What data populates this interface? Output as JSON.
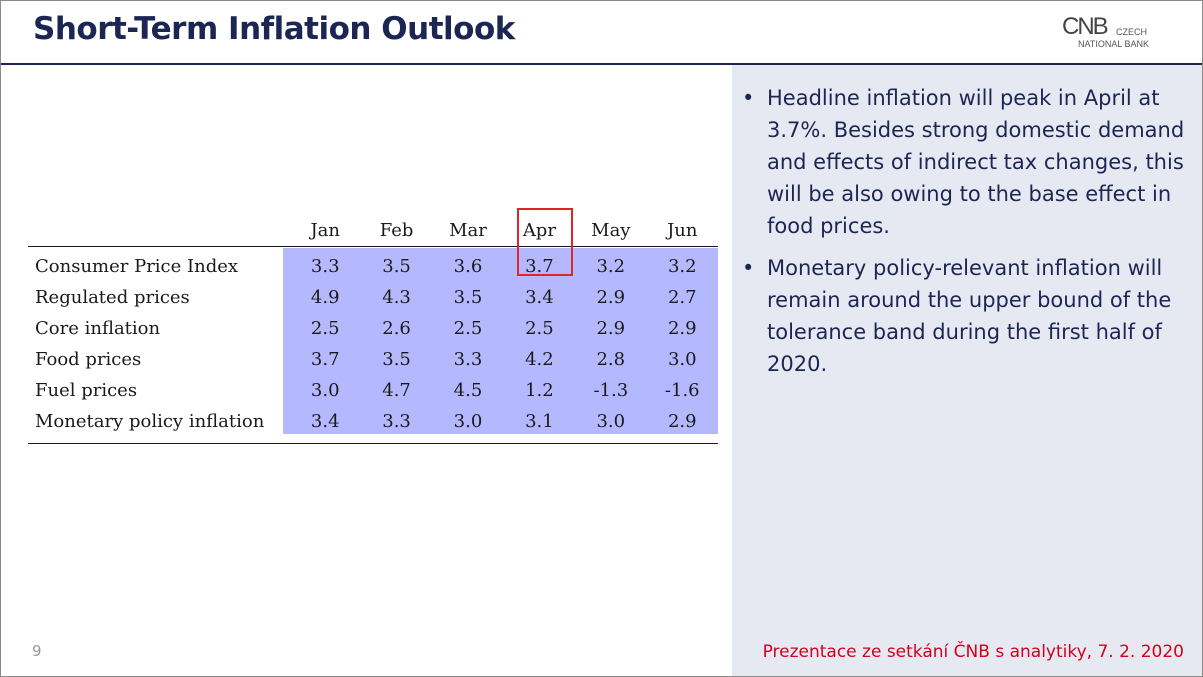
{
  "header": {
    "title": "Short-Term Inflation Outlook",
    "logo": {
      "mark": "CNB",
      "line1": "CZECH",
      "line2": "NATIONAL BANK"
    }
  },
  "table": {
    "columns": [
      "Jan",
      "Feb",
      "Mar",
      "Apr",
      "May",
      "Jun"
    ],
    "highlighted_column": "Apr",
    "rows": [
      {
        "label": "Consumer Price Index",
        "values": [
          "3.3",
          "3.5",
          "3.6",
          "3.7",
          "3.2",
          "3.2"
        ]
      },
      {
        "label": "Regulated prices",
        "values": [
          "4.9",
          "4.3",
          "3.5",
          "3.4",
          "2.9",
          "2.7"
        ]
      },
      {
        "label": "Core inflation",
        "values": [
          "2.5",
          "2.6",
          "2.5",
          "2.5",
          "2.9",
          "2.9"
        ]
      },
      {
        "label": "Food prices",
        "values": [
          "3.7",
          "3.5",
          "3.3",
          "4.2",
          "2.8",
          "3.0"
        ]
      },
      {
        "label": "Fuel prices",
        "values": [
          "3.0",
          "4.7",
          "4.5",
          "1.2",
          "-1.3",
          "-1.6"
        ]
      },
      {
        "label": "Monetary policy inflation",
        "values": [
          "3.4",
          "3.3",
          "3.0",
          "3.1",
          "3.0",
          "2.9"
        ]
      }
    ]
  },
  "bullets": [
    "Headline inflation will peak in April at 3.7%. Besides strong domestic demand and effects of indirect tax changes, this will be also owing to the base effect in food prices.",
    "Monetary policy-relevant inflation will remain around the upper bound of the tolerance band during the first half of 2020."
  ],
  "bullet_symbol": "•",
  "footer": {
    "note": "Prezentace ze setkání ČNB s analytiky, 7. 2. 2020",
    "page_number": "9"
  },
  "colors": {
    "title": "#1c2653",
    "panel_background": "#e6e9f2",
    "table_shading": "#b4b9ff",
    "highlight_border": "#e0242c",
    "footer_note": "#d0021b"
  }
}
